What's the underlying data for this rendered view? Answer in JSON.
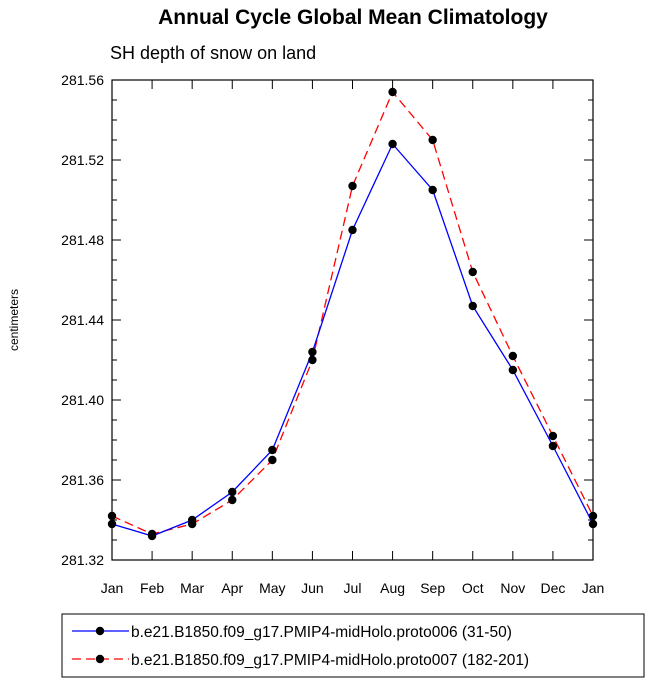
{
  "chart_data": {
    "type": "line",
    "title": "Annual Cycle Global Mean Climatology",
    "subtitle": "SH depth of snow on land",
    "ylabel": "centimeters",
    "xlabel": "",
    "categories": [
      "Jan",
      "Feb",
      "Mar",
      "Apr",
      "May",
      "Jun",
      "Jul",
      "Aug",
      "Sep",
      "Oct",
      "Nov",
      "Dec",
      "Jan"
    ],
    "ylim": [
      281.32,
      281.56
    ],
    "yticks": [
      "281.32",
      "281.36",
      "281.40",
      "281.44",
      "281.48",
      "281.52",
      "281.56"
    ],
    "series": [
      {
        "name": "b.e21.B1850.f09_g17.PMIP4-midHolo.proto006 (31-50)",
        "color": "#0000ff",
        "dash": "solid",
        "values": [
          281.338,
          281.332,
          281.34,
          281.354,
          281.375,
          281.424,
          281.485,
          281.528,
          281.505,
          281.447,
          281.415,
          281.377,
          281.338
        ]
      },
      {
        "name": "b.e21.B1850.f09_g17.PMIP4-midHolo.proto007 (182-201)",
        "color": "#ff0000",
        "dash": "dashed",
        "values": [
          281.342,
          281.333,
          281.338,
          281.35,
          281.37,
          281.42,
          281.507,
          281.554,
          281.53,
          281.464,
          281.422,
          281.382,
          281.342
        ]
      }
    ]
  }
}
